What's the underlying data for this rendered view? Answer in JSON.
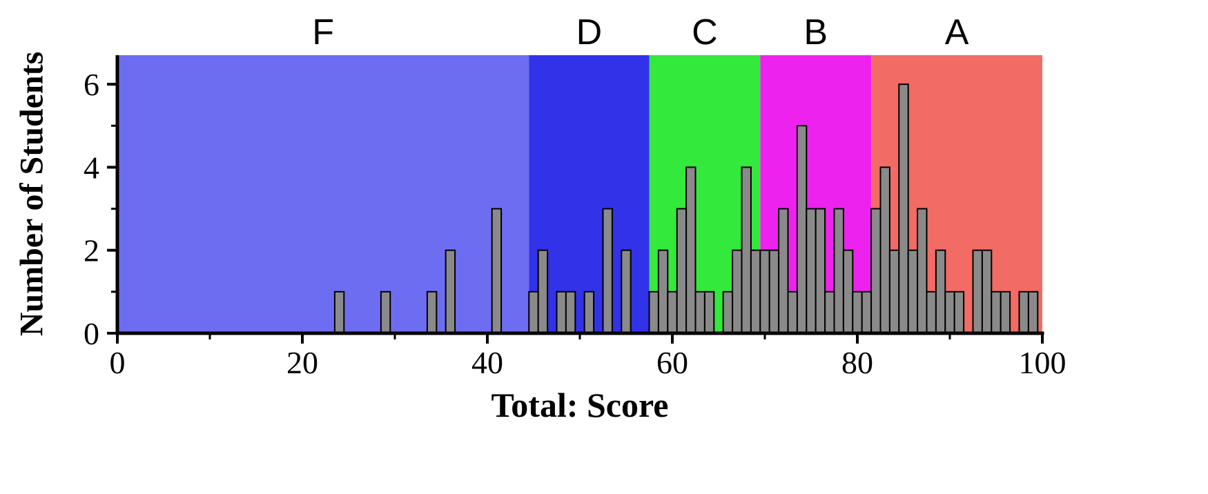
{
  "chart_data": {
    "type": "bar",
    "title": "",
    "xlabel": "Total: Score",
    "ylabel": "Number of Students",
    "xlim": [
      0,
      100
    ],
    "ylim": [
      0,
      6.7
    ],
    "x_major_ticks": [
      0,
      20,
      40,
      60,
      80,
      100
    ],
    "x_minor_ticks": [
      10,
      30,
      50,
      70,
      90
    ],
    "y_major_ticks": [
      0,
      2,
      4,
      6
    ],
    "y_minor_ticks": [
      1,
      3,
      5
    ],
    "grid": false,
    "legend": "none",
    "bar_color": "#8a8a8a",
    "bar_edge_color": "#000000",
    "axis_color": "#000000",
    "zones": [
      {
        "label": "F",
        "start": 0,
        "end": 44.5,
        "color": "#6d6df1"
      },
      {
        "label": "D",
        "start": 44.5,
        "end": 57.5,
        "color": "#3232e9"
      },
      {
        "label": "C",
        "start": 57.5,
        "end": 69.5,
        "color": "#33e93c"
      },
      {
        "label": "B",
        "start": 69.5,
        "end": 81.5,
        "color": "#ee22ee"
      },
      {
        "label": "A",
        "start": 81.5,
        "end": 100,
        "color": "#f26b64"
      }
    ],
    "bins": [
      {
        "score": 24,
        "count": 1
      },
      {
        "score": 29,
        "count": 1
      },
      {
        "score": 34,
        "count": 1
      },
      {
        "score": 36,
        "count": 2
      },
      {
        "score": 41,
        "count": 3
      },
      {
        "score": 45,
        "count": 1
      },
      {
        "score": 46,
        "count": 2
      },
      {
        "score": 48,
        "count": 1
      },
      {
        "score": 49,
        "count": 1
      },
      {
        "score": 51,
        "count": 1
      },
      {
        "score": 53,
        "count": 3
      },
      {
        "score": 55,
        "count": 2
      },
      {
        "score": 58,
        "count": 1
      },
      {
        "score": 59,
        "count": 2
      },
      {
        "score": 60,
        "count": 1
      },
      {
        "score": 61,
        "count": 3
      },
      {
        "score": 62,
        "count": 4
      },
      {
        "score": 63,
        "count": 1
      },
      {
        "score": 64,
        "count": 1
      },
      {
        "score": 66,
        "count": 1
      },
      {
        "score": 67,
        "count": 2
      },
      {
        "score": 68,
        "count": 4
      },
      {
        "score": 69,
        "count": 2
      },
      {
        "score": 70,
        "count": 2
      },
      {
        "score": 71,
        "count": 2
      },
      {
        "score": 72,
        "count": 3
      },
      {
        "score": 73,
        "count": 1
      },
      {
        "score": 74,
        "count": 5
      },
      {
        "score": 75,
        "count": 3
      },
      {
        "score": 76,
        "count": 3
      },
      {
        "score": 77,
        "count": 1
      },
      {
        "score": 78,
        "count": 3
      },
      {
        "score": 79,
        "count": 2
      },
      {
        "score": 80,
        "count": 1
      },
      {
        "score": 81,
        "count": 1
      },
      {
        "score": 82,
        "count": 3
      },
      {
        "score": 83,
        "count": 4
      },
      {
        "score": 84,
        "count": 2
      },
      {
        "score": 85,
        "count": 6
      },
      {
        "score": 86,
        "count": 2
      },
      {
        "score": 87,
        "count": 3
      },
      {
        "score": 88,
        "count": 1
      },
      {
        "score": 89,
        "count": 2
      },
      {
        "score": 90,
        "count": 1
      },
      {
        "score": 91,
        "count": 1
      },
      {
        "score": 93,
        "count": 2
      },
      {
        "score": 94,
        "count": 2
      },
      {
        "score": 95,
        "count": 1
      },
      {
        "score": 96,
        "count": 1
      },
      {
        "score": 98,
        "count": 1
      },
      {
        "score": 99,
        "count": 1
      }
    ]
  }
}
